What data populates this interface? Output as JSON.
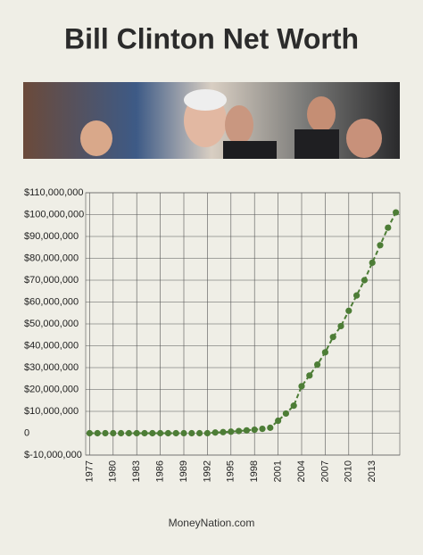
{
  "chart_data": {
    "type": "line",
    "title": "Bill Clinton Net Worth",
    "footer": "MoneyNation.com",
    "x": [
      1977,
      1978,
      1979,
      1980,
      1981,
      1982,
      1983,
      1984,
      1985,
      1986,
      1987,
      1988,
      1989,
      1990,
      1991,
      1992,
      1993,
      1994,
      1995,
      1996,
      1997,
      1998,
      1999,
      2000,
      2001,
      2002,
      2003,
      2004,
      2005,
      2006,
      2007,
      2008,
      2009,
      2010,
      2011,
      2012,
      2013,
      2014,
      2015,
      2016
    ],
    "series": [
      {
        "color": "#4d7d36",
        "values": [
          0,
          0,
          0,
          0,
          0,
          0,
          0,
          0,
          0,
          0,
          0,
          0,
          0,
          0,
          0,
          0,
          300000,
          500000,
          700000,
          1000000,
          1300000,
          1600000,
          2000000,
          2500000,
          5700000,
          9000000,
          12600000,
          21500000,
          26400000,
          31400000,
          37000000,
          44000000,
          49000000,
          56000000,
          63000000,
          70000000,
          78000000,
          86000000,
          94000000,
          101000000
        ]
      }
    ],
    "xlim": [
      1976.5,
      2016.5
    ],
    "xticks": [
      1977,
      1980,
      1983,
      1986,
      1989,
      1992,
      1995,
      1998,
      2001,
      2004,
      2007,
      2010,
      2013
    ],
    "ylim": [
      -10000000,
      110000000
    ],
    "yticks": [
      {
        "value": -10000000,
        "label": "$-10,000,000"
      },
      0,
      {
        "value": 10000000,
        "label": "$10,000,000"
      },
      {
        "value": 20000000,
        "label": "$20,000,000"
      },
      {
        "value": 30000000,
        "label": "$30,000,000"
      },
      {
        "value": 40000000,
        "label": "$40,000,000"
      },
      {
        "value": 50000000,
        "label": "$50,000,000"
      },
      {
        "value": 60000000,
        "label": "$60,000,000"
      },
      {
        "value": 70000000,
        "label": "$70,000,000"
      },
      {
        "value": 80000000,
        "label": "$80,000,000"
      },
      {
        "value": 90000000,
        "label": "$90,000,000"
      },
      {
        "value": 100000000,
        "label": "$100,000,000"
      },
      {
        "value": 110000000,
        "label": "$110,000,000"
      }
    ],
    "grid": true,
    "dashed": true
  }
}
